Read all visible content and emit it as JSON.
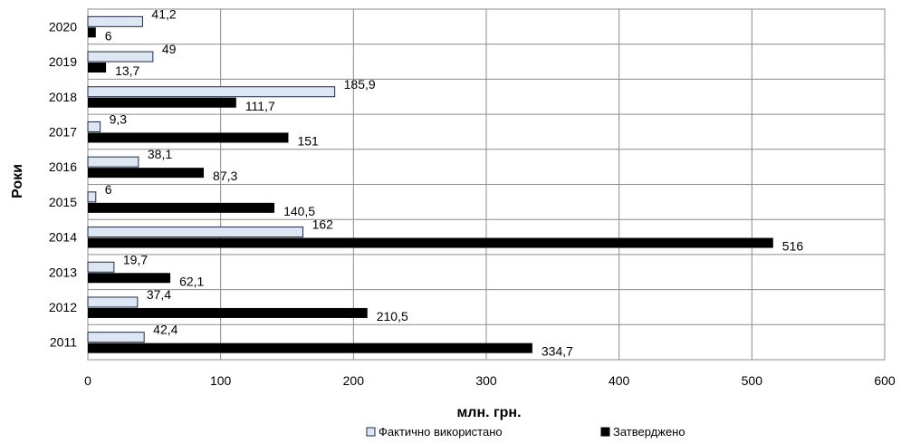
{
  "chart_data": {
    "type": "bar",
    "orientation": "horizontal",
    "categories": [
      "2011",
      "2012",
      "2013",
      "2014",
      "2015",
      "2016",
      "2017",
      "2018",
      "2019",
      "2020"
    ],
    "series": [
      {
        "name": "Фактично використано",
        "color": "#dde7f3",
        "value_labels": [
          "42,4",
          "37,4",
          "19,7",
          "162",
          "6",
          "38,1",
          "9,3",
          "185,9",
          "49",
          "41,2"
        ],
        "values": [
          42.4,
          37.4,
          19.7,
          162,
          6,
          38.1,
          9.3,
          185.9,
          49,
          41.2
        ]
      },
      {
        "name": "Затверджено",
        "color": "#000000",
        "value_labels": [
          "334,7",
          "210,5",
          "62,1",
          "516",
          "140,5",
          "87,3",
          "151",
          "111,7",
          "13,7",
          "6"
        ],
        "values": [
          334.7,
          210.5,
          62.1,
          516,
          140.5,
          87.3,
          151,
          111.7,
          13.7,
          6
        ]
      }
    ],
    "xlabel": "млн. грн.",
    "ylabel": "Роки",
    "xlim": [
      0,
      600
    ],
    "xticks": [
      0,
      100,
      200,
      300,
      400,
      500,
      600
    ],
    "grid": true,
    "legend_position": "bottom"
  }
}
